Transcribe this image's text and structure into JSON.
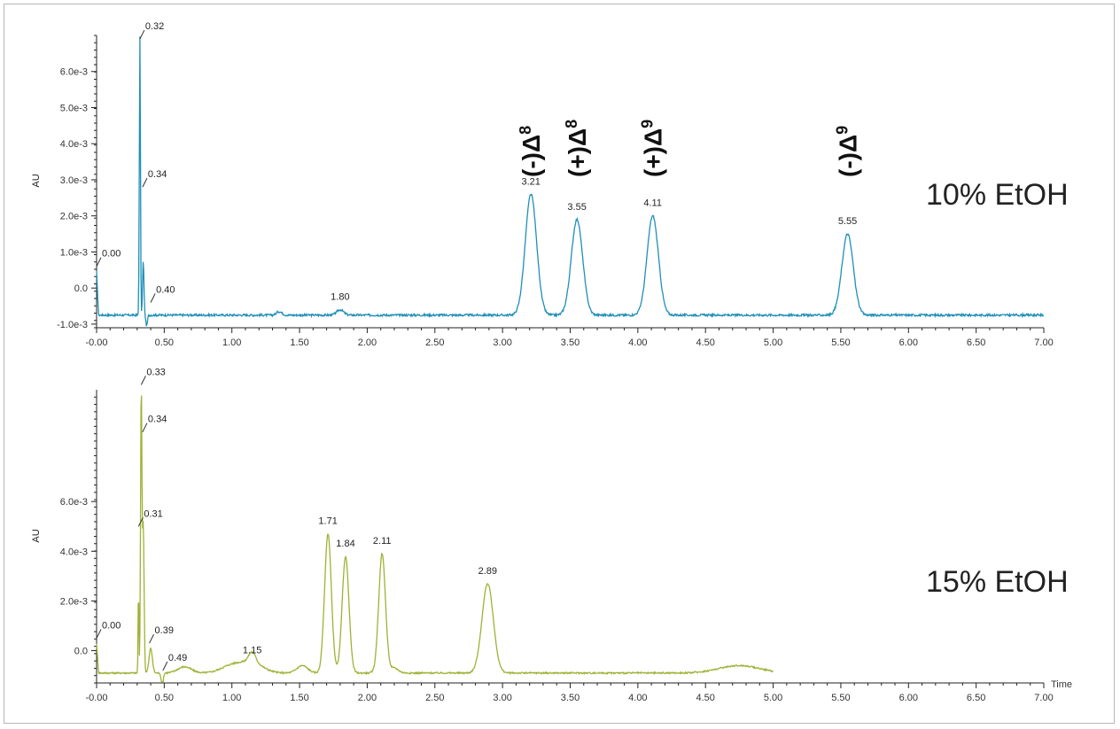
{
  "chart_data": [
    {
      "type": "line",
      "annotation": "10% EtOH",
      "ylabel": "AU",
      "xlabel": "",
      "xlim": [
        0,
        7
      ],
      "ylim": [
        -0.0011,
        0.007
      ],
      "x_ticks": [
        "-0.00",
        "0.50",
        "1.00",
        "1.50",
        "2.00",
        "2.50",
        "3.00",
        "3.50",
        "4.00",
        "4.50",
        "5.00",
        "5.50",
        "6.00",
        "6.50",
        "7.00"
      ],
      "y_ticks": [
        {
          "value": -0.001,
          "label": "-1.0e-3"
        },
        {
          "value": 0.0,
          "label": "0.0"
        },
        {
          "value": 0.001,
          "label": "1.0e-3"
        },
        {
          "value": 0.002,
          "label": "2.0e-3"
        },
        {
          "value": 0.003,
          "label": "3.0e-3"
        },
        {
          "value": 0.004,
          "label": "4.0e-3"
        },
        {
          "value": 0.005,
          "label": "5.0e-3"
        },
        {
          "value": 0.006,
          "label": "6.0e-3"
        }
      ],
      "color": "#1f8fb8",
      "baseline": -0.00075,
      "spike": {
        "x": 0.32,
        "y": 0.0069
      },
      "peaks": [
        {
          "x": 0.0,
          "label": "0.00",
          "y": 0.0006
        },
        {
          "x": 0.32,
          "label": "0.32",
          "y": 0.0069
        },
        {
          "x": 0.34,
          "label": "0.34",
          "y": 0.0028
        },
        {
          "x": 0.4,
          "label": "0.40",
          "y": -0.0004
        },
        {
          "x": 1.8,
          "label": "1.80",
          "y": -0.0006
        },
        {
          "x": 3.21,
          "label": "3.21",
          "y": 0.0026
        },
        {
          "x": 3.55,
          "label": "3.55",
          "y": 0.0019
        },
        {
          "x": 4.11,
          "label": "4.11",
          "y": 0.002
        },
        {
          "x": 5.55,
          "label": "5.55",
          "y": 0.0015
        }
      ],
      "isomers": [
        {
          "x": 3.21,
          "sign": "(-)",
          "delta": "Δ",
          "sup": "8"
        },
        {
          "x": 3.55,
          "sign": "(+)",
          "delta": "Δ",
          "sup": "8"
        },
        {
          "x": 4.11,
          "sign": "(+)",
          "delta": "Δ",
          "sup": "9"
        },
        {
          "x": 5.55,
          "sign": "(-)",
          "delta": "Δ",
          "sup": "9"
        }
      ]
    },
    {
      "type": "line",
      "annotation": "15% EtOH",
      "ylabel": "AU",
      "xlabel": "Time",
      "xlim": [
        0,
        7
      ],
      "ylim": [
        -0.0013,
        0.0105
      ],
      "x_ticks": [
        "-0.00",
        "0.50",
        "1.00",
        "1.50",
        "2.00",
        "2.50",
        "3.00",
        "3.50",
        "4.00",
        "4.50",
        "5.00",
        "5.50",
        "6.00",
        "6.50",
        "7.00"
      ],
      "y_ticks": [
        {
          "value": 0.0,
          "label": "0.0"
        },
        {
          "value": 0.002,
          "label": "2.0e-3"
        },
        {
          "value": 0.004,
          "label": "4.0e-3"
        },
        {
          "value": 0.006,
          "label": "6.0e-3"
        }
      ],
      "color": "#9db336",
      "baseline": -0.0009,
      "x_end": 5.0,
      "peaks": [
        {
          "x": 0.0,
          "label": "0.00",
          "y": 0.0005
        },
        {
          "x": 0.31,
          "label": "0.31",
          "y": 0.005
        },
        {
          "x": 0.33,
          "label": "0.33",
          "y": 0.0107
        },
        {
          "x": 0.34,
          "label": "0.34",
          "y": 0.0088
        },
        {
          "x": 0.39,
          "label": "0.39",
          "y": 0.0003
        },
        {
          "x": 0.49,
          "label": "0.49",
          "y": -0.0008
        },
        {
          "x": 1.15,
          "label": "1.15",
          "y": -0.0005
        },
        {
          "x": 1.71,
          "label": "1.71",
          "y": 0.0047
        },
        {
          "x": 1.84,
          "label": "1.84",
          "y": 0.0038
        },
        {
          "x": 2.11,
          "label": "2.11",
          "y": 0.0039
        },
        {
          "x": 2.89,
          "label": "2.89",
          "y": 0.0027
        }
      ]
    }
  ]
}
